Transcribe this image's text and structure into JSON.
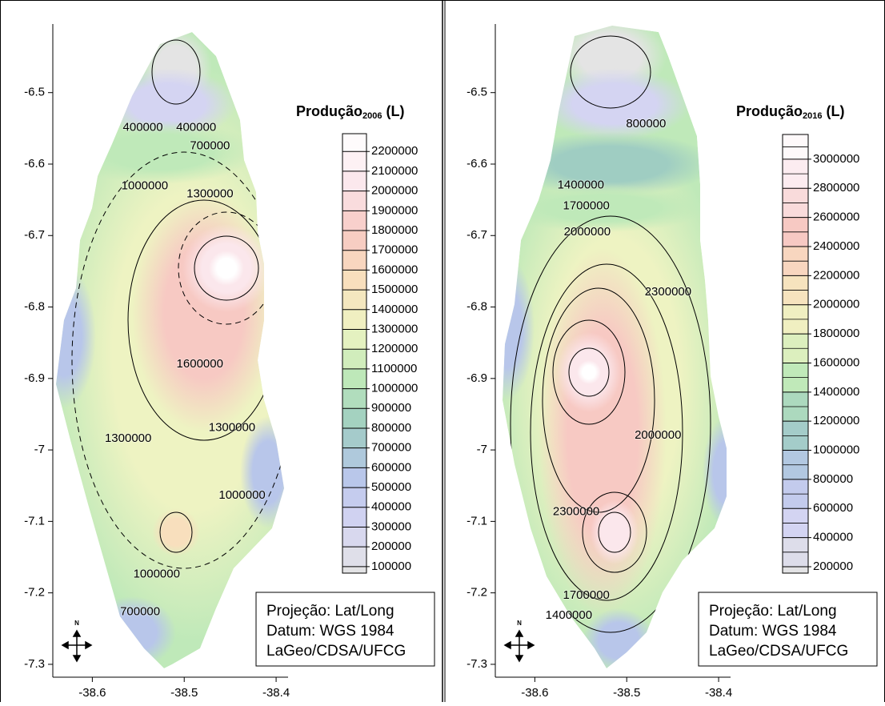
{
  "chart_data": [
    {
      "type": "contour",
      "title": {
        "main": "Produção",
        "sub": "2006",
        "unit": "(L)"
      },
      "xlim": [
        -38.643,
        -38.387
      ],
      "ylim": [
        -7.318,
        -6.404
      ],
      "xticks": [
        -38.6,
        -38.5,
        -38.4
      ],
      "yticks": [
        -6.5,
        -6.6,
        -6.7,
        -6.8,
        -6.9,
        -7,
        -7.1,
        -7.2,
        -7.3
      ],
      "colorbar": {
        "range": [
          67000,
          2290000
        ],
        "ticks": [
          100000,
          200000,
          300000,
          400000,
          500000,
          600000,
          700000,
          800000,
          900000,
          1000000,
          1100000,
          1200000,
          1300000,
          1400000,
          1500000,
          1600000,
          1700000,
          1800000,
          1900000,
          2000000,
          2100000,
          2200000
        ]
      },
      "colormap": [
        "#e4e4e4",
        "#d4d4f2",
        "#b8c6ea",
        "#9fcdc2",
        "#bfe9b9",
        "#eef3c2",
        "#f8dfbd",
        "#f7c9c3",
        "#fbe7ec",
        "#ffffff"
      ],
      "contour_labels": [
        {
          "value": 400000,
          "lon": -38.545,
          "lat": -6.549
        },
        {
          "value": 400000,
          "lon": -38.487,
          "lat": -6.549
        },
        {
          "value": 700000,
          "lon": -38.472,
          "lat": -6.575
        },
        {
          "value": 1000000,
          "lon": -38.543,
          "lat": -6.631
        },
        {
          "value": 1300000,
          "lon": -38.472,
          "lat": -6.642
        },
        {
          "value": 1600000,
          "lon": -38.483,
          "lat": -6.88
        },
        {
          "value": 1300000,
          "lon": -38.561,
          "lat": -6.984
        },
        {
          "value": 1300000,
          "lon": -38.448,
          "lat": -6.969
        },
        {
          "value": 1000000,
          "lon": -38.437,
          "lat": -7.064
        },
        {
          "value": 1000000,
          "lon": -38.53,
          "lat": -7.174
        },
        {
          "value": 700000,
          "lon": -38.548,
          "lat": -7.227
        }
      ],
      "info": [
        "Projeção: Lat/Long",
        "Datum: WGS 1984",
        "LaGeo/CDSA/UFCG"
      ],
      "north": "N"
    },
    {
      "type": "contour",
      "title": {
        "main": "Produção",
        "sub": "2016",
        "unit": "(L)"
      },
      "xlim": [
        -38.643,
        -38.387
      ],
      "ylim": [
        -7.318,
        -6.404
      ],
      "xticks": [
        -38.6,
        -38.5,
        -38.4
      ],
      "yticks": [
        -6.5,
        -6.6,
        -6.7,
        -6.8,
        -6.9,
        -7,
        -7.1,
        -7.2,
        -7.3
      ],
      "colorbar": {
        "range": [
          156000,
          3170000
        ],
        "ticks": [
          200000,
          400000,
          600000,
          800000,
          1000000,
          1200000,
          1400000,
          1600000,
          1800000,
          2000000,
          2200000,
          2400000,
          2600000,
          2800000,
          3000000
        ]
      },
      "colormap": [
        "#e4e4e4",
        "#d4d4f2",
        "#b8c6ea",
        "#9fcdc2",
        "#bfe9b9",
        "#eef3c2",
        "#f8dfbd",
        "#f7c9c3",
        "#fbe7ec",
        "#ffffff"
      ],
      "contour_labels": [
        {
          "value": 800000,
          "lon": -38.479,
          "lat": -6.544
        },
        {
          "value": 1400000,
          "lon": -38.55,
          "lat": -6.63
        },
        {
          "value": 1700000,
          "lon": -38.544,
          "lat": -6.659
        },
        {
          "value": 2000000,
          "lon": -38.543,
          "lat": -6.695
        },
        {
          "value": 2300000,
          "lon": -38.455,
          "lat": -6.779
        },
        {
          "value": 2000000,
          "lon": -38.466,
          "lat": -6.98
        },
        {
          "value": 2300000,
          "lon": -38.555,
          "lat": -7.087
        },
        {
          "value": 1700000,
          "lon": -38.544,
          "lat": -7.204
        },
        {
          "value": 1400000,
          "lon": -38.563,
          "lat": -7.232
        }
      ],
      "info": [
        "Projeção: Lat/Long",
        "Datum: WGS 1984",
        "LaGeo/CDSA/UFCG"
      ],
      "north": "N"
    }
  ]
}
